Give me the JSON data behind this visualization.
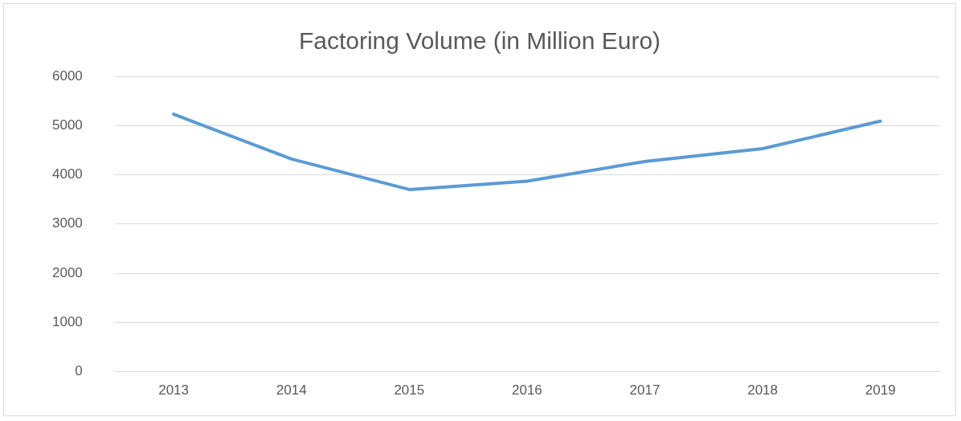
{
  "chart_data": {
    "type": "line",
    "title": "Factoring Volume (in Million Euro)",
    "categories": [
      "2013",
      "2014",
      "2015",
      "2016",
      "2017",
      "2018",
      "2019"
    ],
    "series": [
      {
        "color": "#5b9bd5",
        "values": [
          5230,
          4320,
          3700,
          3870,
          4270,
          4530,
          5090
        ]
      }
    ],
    "ylim": [
      0,
      6000
    ],
    "yticks": [
      0,
      1000,
      2000,
      3000,
      4000,
      5000,
      6000
    ],
    "grid": "y",
    "legend": false,
    "marker": "none",
    "line_style": "solid"
  }
}
